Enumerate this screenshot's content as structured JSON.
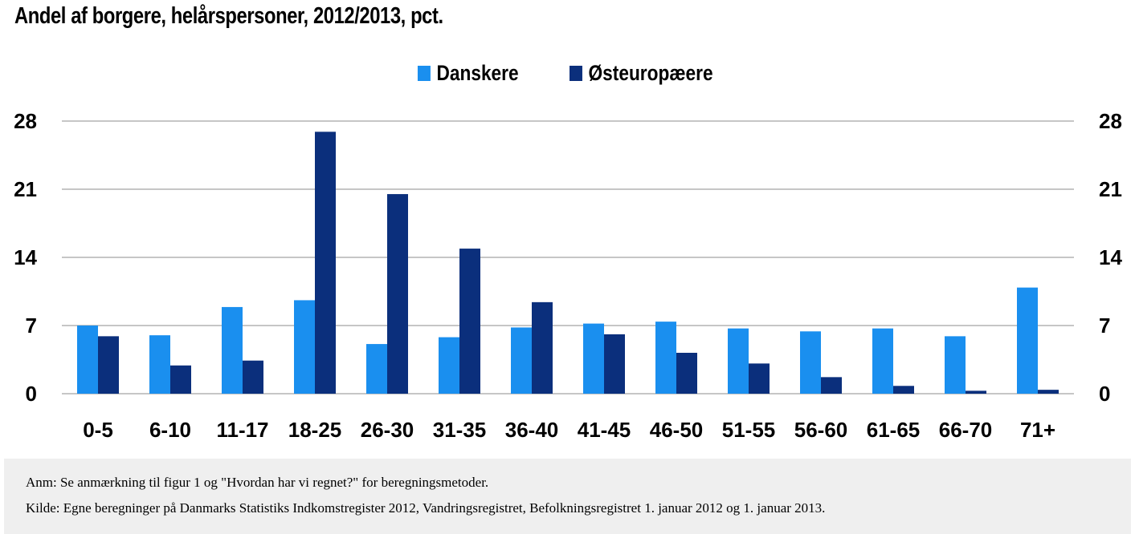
{
  "title": "Andel af borgere, helårspersoner, 2012/2013, pct.",
  "footer": {
    "note": "Anm: Se anmærkning til figur 1 og \"Hvordan har vi regnet?\" for beregningsmetoder.",
    "source": "Kilde: Egne beregninger på Danmarks Statistiks Indkomstregister 2012, Vandringsregistret, Befolkningsregistret 1. januar 2012 og 1. januar 2013."
  },
  "colors": {
    "danskere": "#1a8fef",
    "osteuropaeere": "#0b2f7c",
    "grid": "#8c8c8c"
  },
  "chart_data": {
    "type": "bar",
    "title": "Andel af borgere, helårspersoner, 2012/2013, pct.",
    "xlabel": "",
    "ylabel": "",
    "ylim": [
      0,
      28
    ],
    "yticks": [
      0,
      7,
      14,
      21,
      28
    ],
    "secondary_y_axis": true,
    "grid": true,
    "legend_position": "top-center",
    "categories": [
      "0-5",
      "6-10",
      "11-17",
      "18-25",
      "26-30",
      "31-35",
      "36-40",
      "41-45",
      "46-50",
      "51-55",
      "56-60",
      "61-65",
      "66-70",
      "71+"
    ],
    "series": [
      {
        "name": "Danskere",
        "color": "#1a8fef",
        "values": [
          7.0,
          6.0,
          8.9,
          9.6,
          5.1,
          5.8,
          6.8,
          7.2,
          7.4,
          6.7,
          6.4,
          6.7,
          5.9,
          10.9
        ]
      },
      {
        "name": "Østeuropæere",
        "color": "#0b2f7c",
        "values": [
          5.9,
          2.9,
          3.4,
          26.9,
          20.5,
          14.9,
          9.4,
          6.1,
          4.2,
          3.1,
          1.7,
          0.8,
          0.3,
          0.4
        ]
      }
    ]
  }
}
